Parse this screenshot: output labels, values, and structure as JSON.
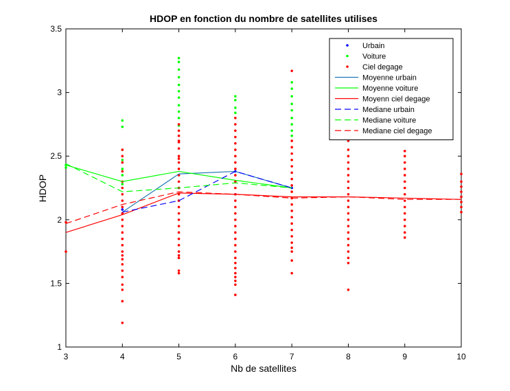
{
  "chart_data": {
    "type": "scatter",
    "title": "HDOP en fonction du nombre de satellites utilises",
    "xlabel": "Nb de satellites",
    "ylabel": "HDOP",
    "xlim": [
      3,
      10
    ],
    "ylim": [
      1,
      3.5
    ],
    "xticks": [
      "3",
      "4",
      "5",
      "6",
      "7",
      "8",
      "9",
      "10"
    ],
    "yticks": [
      "1",
      "1.5",
      "2",
      "2.5",
      "3",
      "3.5"
    ],
    "grid": false,
    "legend_position": "top-right",
    "colors": {
      "urbain": "#0000ff",
      "voiture": "#00ff00",
      "ciel": "#ff0000",
      "moyenne_urbain": "#1f77b4"
    },
    "scatter_series": [
      {
        "name": "Urbain",
        "color": "#0000ff",
        "points": [
          {
            "x": 4,
            "y": 2.05
          },
          {
            "x": 4,
            "y": 2.08
          },
          {
            "x": 5,
            "y": 2.15
          },
          {
            "x": 5,
            "y": 2.25
          },
          {
            "x": 6,
            "y": 2.2
          },
          {
            "x": 6,
            "y": 2.38
          },
          {
            "x": 7,
            "y": 2.25
          }
        ]
      },
      {
        "name": "Voiture",
        "color": "#00ff00",
        "points": [
          {
            "x": 3,
            "y": 2.43
          },
          {
            "x": 3,
            "y": 2.41
          },
          {
            "x": 4,
            "y": 2.78
          },
          {
            "x": 4,
            "y": 2.73
          },
          {
            "x": 4,
            "y": 2.55
          },
          {
            "x": 4,
            "y": 2.47
          },
          {
            "x": 4,
            "y": 2.4
          },
          {
            "x": 4,
            "y": 2.35
          },
          {
            "x": 4,
            "y": 2.28
          },
          {
            "x": 5,
            "y": 3.27
          },
          {
            "x": 5,
            "y": 3.24
          },
          {
            "x": 5,
            "y": 3.18
          },
          {
            "x": 5,
            "y": 3.12
          },
          {
            "x": 5,
            "y": 3.06
          },
          {
            "x": 5,
            "y": 3.01
          },
          {
            "x": 5,
            "y": 2.96
          },
          {
            "x": 5,
            "y": 2.9
          },
          {
            "x": 5,
            "y": 2.85
          },
          {
            "x": 5,
            "y": 2.8
          },
          {
            "x": 5,
            "y": 2.74
          },
          {
            "x": 6,
            "y": 2.97
          },
          {
            "x": 6,
            "y": 2.94
          },
          {
            "x": 6,
            "y": 2.88
          },
          {
            "x": 6,
            "y": 2.84
          },
          {
            "x": 7,
            "y": 3.08
          },
          {
            "x": 7,
            "y": 3.03
          },
          {
            "x": 7,
            "y": 2.97
          },
          {
            "x": 7,
            "y": 2.91
          },
          {
            "x": 7,
            "y": 2.86
          },
          {
            "x": 7,
            "y": 2.8
          },
          {
            "x": 7,
            "y": 2.75
          },
          {
            "x": 7,
            "y": 2.7
          },
          {
            "x": 7,
            "y": 2.66
          }
        ]
      },
      {
        "name": "Ciel degage",
        "color": "#ff0000",
        "points": [
          {
            "x": 3,
            "y": 1.75
          },
          {
            "x": 3,
            "y": 1.98
          },
          {
            "x": 4,
            "y": 2.55
          },
          {
            "x": 4,
            "y": 2.5
          },
          {
            "x": 4,
            "y": 2.45
          },
          {
            "x": 4,
            "y": 2.38
          },
          {
            "x": 4,
            "y": 2.3
          },
          {
            "x": 4,
            "y": 2.25
          },
          {
            "x": 4,
            "y": 2.2
          },
          {
            "x": 4,
            "y": 2.15
          },
          {
            "x": 4,
            "y": 2.1
          },
          {
            "x": 4,
            "y": 2.05
          },
          {
            "x": 4,
            "y": 2.0
          },
          {
            "x": 4,
            "y": 1.95
          },
          {
            "x": 4,
            "y": 1.9
          },
          {
            "x": 4,
            "y": 1.85
          },
          {
            "x": 4,
            "y": 1.8
          },
          {
            "x": 4,
            "y": 1.75
          },
          {
            "x": 4,
            "y": 1.72
          },
          {
            "x": 4,
            "y": 1.69
          },
          {
            "x": 4,
            "y": 1.65
          },
          {
            "x": 4,
            "y": 1.6
          },
          {
            "x": 4,
            "y": 1.55
          },
          {
            "x": 4,
            "y": 1.49
          },
          {
            "x": 4,
            "y": 1.45
          },
          {
            "x": 4,
            "y": 1.36
          },
          {
            "x": 4,
            "y": 1.19
          },
          {
            "x": 5,
            "y": 2.75
          },
          {
            "x": 5,
            "y": 2.7
          },
          {
            "x": 5,
            "y": 2.66
          },
          {
            "x": 5,
            "y": 2.61
          },
          {
            "x": 5,
            "y": 2.56
          },
          {
            "x": 5,
            "y": 2.5
          },
          {
            "x": 5,
            "y": 2.45
          },
          {
            "x": 5,
            "y": 2.4
          },
          {
            "x": 5,
            "y": 2.35
          },
          {
            "x": 5,
            "y": 2.3
          },
          {
            "x": 5,
            "y": 2.25
          },
          {
            "x": 5,
            "y": 2.2
          },
          {
            "x": 5,
            "y": 2.15
          },
          {
            "x": 5,
            "y": 2.1
          },
          {
            "x": 5,
            "y": 2.05
          },
          {
            "x": 5,
            "y": 2.0
          },
          {
            "x": 5,
            "y": 1.95
          },
          {
            "x": 5,
            "y": 1.9
          },
          {
            "x": 5,
            "y": 1.85
          },
          {
            "x": 5,
            "y": 1.8
          },
          {
            "x": 5,
            "y": 1.75
          },
          {
            "x": 5,
            "y": 1.72
          },
          {
            "x": 5,
            "y": 1.7
          },
          {
            "x": 5,
            "y": 1.6
          },
          {
            "x": 5,
            "y": 1.58
          },
          {
            "x": 5,
            "y": 2.62
          },
          {
            "x": 5,
            "y": 2.48
          },
          {
            "x": 6,
            "y": 2.8
          },
          {
            "x": 6,
            "y": 2.75
          },
          {
            "x": 6,
            "y": 2.7
          },
          {
            "x": 6,
            "y": 2.65
          },
          {
            "x": 6,
            "y": 2.6
          },
          {
            "x": 6,
            "y": 2.55
          },
          {
            "x": 6,
            "y": 2.5
          },
          {
            "x": 6,
            "y": 2.45
          },
          {
            "x": 6,
            "y": 2.4
          },
          {
            "x": 6,
            "y": 2.35
          },
          {
            "x": 6,
            "y": 2.3
          },
          {
            "x": 6,
            "y": 2.25
          },
          {
            "x": 6,
            "y": 2.2
          },
          {
            "x": 6,
            "y": 2.15
          },
          {
            "x": 6,
            "y": 2.1
          },
          {
            "x": 6,
            "y": 2.05
          },
          {
            "x": 6,
            "y": 2.0
          },
          {
            "x": 6,
            "y": 1.95
          },
          {
            "x": 6,
            "y": 1.9
          },
          {
            "x": 6,
            "y": 1.85
          },
          {
            "x": 6,
            "y": 1.8
          },
          {
            "x": 6,
            "y": 1.75
          },
          {
            "x": 6,
            "y": 1.7
          },
          {
            "x": 6,
            "y": 1.66
          },
          {
            "x": 6,
            "y": 1.62
          },
          {
            "x": 6,
            "y": 1.58
          },
          {
            "x": 6,
            "y": 1.55
          },
          {
            "x": 6,
            "y": 1.52
          },
          {
            "x": 6,
            "y": 1.49
          },
          {
            "x": 6,
            "y": 1.41
          },
          {
            "x": 7,
            "y": 3.17
          },
          {
            "x": 7,
            "y": 2.62
          },
          {
            "x": 7,
            "y": 2.57
          },
          {
            "x": 7,
            "y": 2.52
          },
          {
            "x": 7,
            "y": 2.47
          },
          {
            "x": 7,
            "y": 2.42
          },
          {
            "x": 7,
            "y": 2.37
          },
          {
            "x": 7,
            "y": 2.32
          },
          {
            "x": 7,
            "y": 2.27
          },
          {
            "x": 7,
            "y": 2.22
          },
          {
            "x": 7,
            "y": 2.17
          },
          {
            "x": 7,
            "y": 2.12
          },
          {
            "x": 7,
            "y": 2.07
          },
          {
            "x": 7,
            "y": 2.02
          },
          {
            "x": 7,
            "y": 1.97
          },
          {
            "x": 7,
            "y": 1.92
          },
          {
            "x": 7,
            "y": 1.87
          },
          {
            "x": 7,
            "y": 1.82
          },
          {
            "x": 7,
            "y": 1.78
          },
          {
            "x": 7,
            "y": 1.75
          },
          {
            "x": 7,
            "y": 1.68
          },
          {
            "x": 7,
            "y": 1.58
          },
          {
            "x": 8,
            "y": 2.62
          },
          {
            "x": 8,
            "y": 2.55
          },
          {
            "x": 8,
            "y": 2.5
          },
          {
            "x": 8,
            "y": 2.45
          },
          {
            "x": 8,
            "y": 2.4
          },
          {
            "x": 8,
            "y": 2.35
          },
          {
            "x": 8,
            "y": 2.3
          },
          {
            "x": 8,
            "y": 2.25
          },
          {
            "x": 8,
            "y": 2.2
          },
          {
            "x": 8,
            "y": 2.15
          },
          {
            "x": 8,
            "y": 2.1
          },
          {
            "x": 8,
            "y": 2.05
          },
          {
            "x": 8,
            "y": 2.0
          },
          {
            "x": 8,
            "y": 1.95
          },
          {
            "x": 8,
            "y": 1.9
          },
          {
            "x": 8,
            "y": 1.85
          },
          {
            "x": 8,
            "y": 1.8
          },
          {
            "x": 8,
            "y": 1.75
          },
          {
            "x": 8,
            "y": 1.7
          },
          {
            "x": 8,
            "y": 1.66
          },
          {
            "x": 8,
            "y": 1.45
          },
          {
            "x": 9,
            "y": 2.54
          },
          {
            "x": 9,
            "y": 2.5
          },
          {
            "x": 9,
            "y": 2.45
          },
          {
            "x": 9,
            "y": 2.4
          },
          {
            "x": 9,
            "y": 2.35
          },
          {
            "x": 9,
            "y": 2.3
          },
          {
            "x": 9,
            "y": 2.25
          },
          {
            "x": 9,
            "y": 2.2
          },
          {
            "x": 9,
            "y": 2.15
          },
          {
            "x": 9,
            "y": 2.1
          },
          {
            "x": 9,
            "y": 2.05
          },
          {
            "x": 9,
            "y": 2.0
          },
          {
            "x": 9,
            "y": 1.95
          },
          {
            "x": 9,
            "y": 1.9
          },
          {
            "x": 9,
            "y": 1.86
          },
          {
            "x": 10,
            "y": 2.36
          },
          {
            "x": 10,
            "y": 2.3
          },
          {
            "x": 10,
            "y": 2.26
          },
          {
            "x": 10,
            "y": 2.22
          },
          {
            "x": 10,
            "y": 2.18
          },
          {
            "x": 10,
            "y": 2.14
          },
          {
            "x": 10,
            "y": 2.1
          },
          {
            "x": 10,
            "y": 2.06
          }
        ]
      }
    ],
    "line_series": [
      {
        "name": "Moyenne urbain",
        "color": "#1f77b4",
        "dash": "solid",
        "x": [
          4,
          5,
          6,
          7
        ],
        "y": [
          2.06,
          2.36,
          2.38,
          2.25
        ]
      },
      {
        "name": "Moyenne voiture",
        "color": "#00ff00",
        "dash": "solid",
        "x": [
          3,
          4,
          5,
          6,
          7
        ],
        "y": [
          2.43,
          2.3,
          2.38,
          2.31,
          2.25
        ]
      },
      {
        "name": "Moyenn ciel degage",
        "color": "#ff0000",
        "dash": "solid",
        "x": [
          3,
          4,
          5,
          6,
          7,
          8,
          9,
          10
        ],
        "y": [
          1.9,
          2.04,
          2.21,
          2.2,
          2.18,
          2.18,
          2.17,
          2.16
        ]
      },
      {
        "name": "Mediane urbain",
        "color": "#0000ff",
        "dash": "dashed",
        "x": [
          4,
          5,
          6,
          7
        ],
        "y": [
          2.06,
          2.15,
          2.38,
          2.25
        ]
      },
      {
        "name": "Mediane voiture",
        "color": "#00ff00",
        "dash": "dashed",
        "x": [
          3,
          4,
          5,
          6,
          7
        ],
        "y": [
          2.44,
          2.22,
          2.25,
          2.29,
          2.25
        ]
      },
      {
        "name": "Mediane ciel degage",
        "color": "#ff0000",
        "dash": "dashed",
        "x": [
          3,
          4,
          5,
          6,
          7,
          8,
          9,
          10
        ],
        "y": [
          1.97,
          2.12,
          2.22,
          2.2,
          2.17,
          2.18,
          2.16,
          2.16
        ]
      }
    ],
    "legend": [
      {
        "label": "Urbain",
        "kind": "marker",
        "color": "#0000ff"
      },
      {
        "label": "Voiture",
        "kind": "marker",
        "color": "#00ff00"
      },
      {
        "label": "Ciel degage",
        "kind": "marker",
        "color": "#ff0000"
      },
      {
        "label": "Moyenne urbain",
        "kind": "line",
        "color": "#1f77b4",
        "dash": "solid"
      },
      {
        "label": "Moyenne voiture",
        "kind": "line",
        "color": "#00ff00",
        "dash": "solid"
      },
      {
        "label": "Moyenn ciel degage",
        "kind": "line",
        "color": "#ff0000",
        "dash": "solid"
      },
      {
        "label": "Mediane urbain",
        "kind": "line",
        "color": "#0000ff",
        "dash": "dashed"
      },
      {
        "label": "Mediane voiture",
        "kind": "line",
        "color": "#00ff00",
        "dash": "dashed"
      },
      {
        "label": "Mediane ciel degage",
        "kind": "line",
        "color": "#ff0000",
        "dash": "dashed"
      }
    ]
  }
}
